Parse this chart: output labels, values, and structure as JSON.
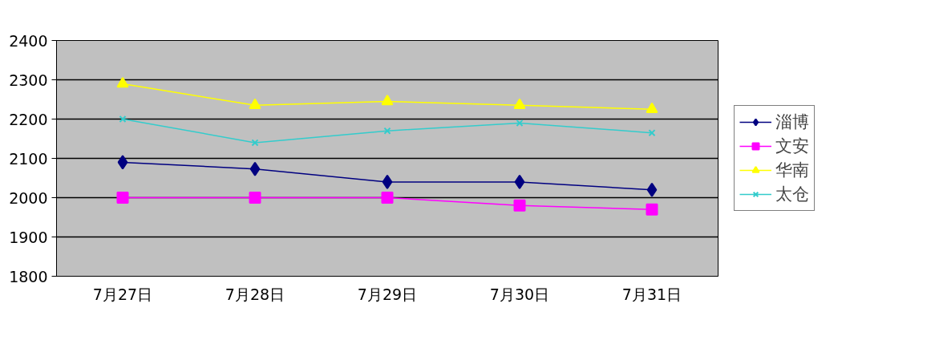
{
  "chart_data": {
    "type": "line",
    "categories": [
      "7月27日",
      "7月28日",
      "7月29日",
      "7月30日",
      "7月31日"
    ],
    "series": [
      {
        "name": "淄博",
        "color": "#000080",
        "marker": "diamond",
        "values": [
          2090,
          2073,
          2040,
          2040,
          2020
        ]
      },
      {
        "name": "文安",
        "color": "#ff00ff",
        "marker": "square",
        "values": [
          2000,
          2000,
          2000,
          1980,
          1970
        ]
      },
      {
        "name": "华南",
        "color": "#ffff00",
        "marker": "triangle",
        "values": [
          2290,
          2235,
          2245,
          2235,
          2225
        ]
      },
      {
        "name": "太仓",
        "color": "#33cccc",
        "marker": "cross",
        "values": [
          2200,
          2140,
          2170,
          2190,
          2165
        ]
      }
    ],
    "ylim": [
      1800,
      2400
    ],
    "yticks": [
      1800,
      1900,
      2000,
      2100,
      2200,
      2300,
      2400
    ],
    "grid": "y",
    "legend": "right",
    "line_style": "solid"
  }
}
